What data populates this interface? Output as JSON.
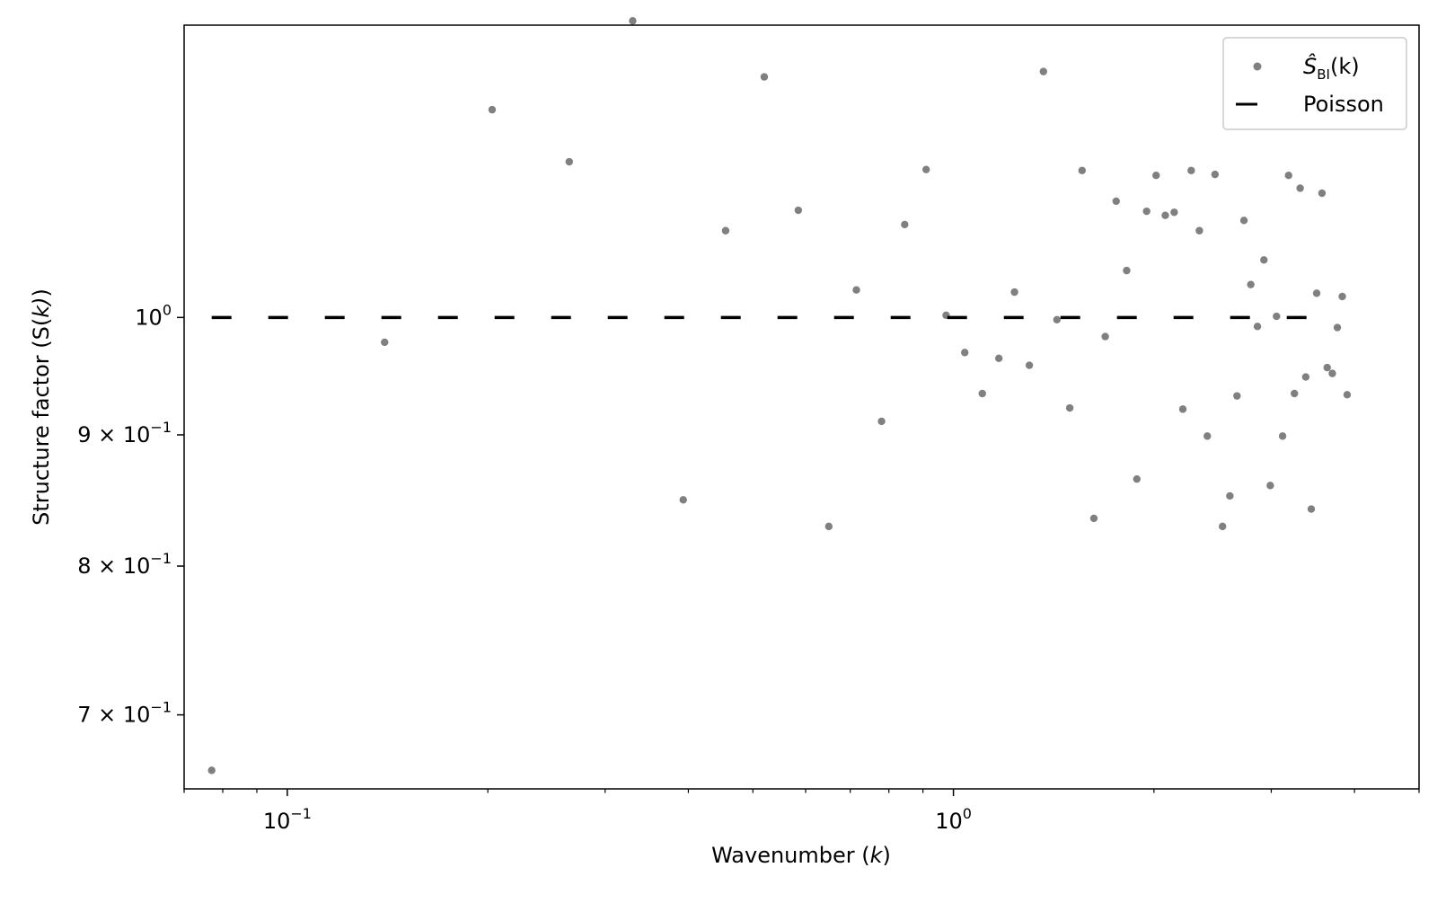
{
  "chart_data": {
    "type": "scatter",
    "xlabel": "Wavenumber (k)",
    "ylabel": "Structure factor (S(k))",
    "xscale": "log",
    "yscale": "log",
    "xlim": [
      0.07,
      5.0
    ],
    "ylim": [
      0.655,
      1.3
    ],
    "grid": false,
    "legend_position": "top-right",
    "x_ticks": [
      {
        "value": 0.1,
        "base": "10",
        "exp": "−1"
      },
      {
        "value": 1.0,
        "base": "10",
        "exp": "0"
      }
    ],
    "y_ticks": [
      {
        "value": 1.0,
        "coef": "",
        "base": "10",
        "exp": "0"
      },
      {
        "value": 0.9,
        "coef": "9 × ",
        "base": "10",
        "exp": "−1"
      },
      {
        "value": 0.8,
        "coef": "8 × ",
        "base": "10",
        "exp": "−1"
      },
      {
        "value": 0.7,
        "coef": "7 × ",
        "base": "10",
        "exp": "−1"
      }
    ],
    "series": [
      {
        "name": "Ŝ_BI(k)",
        "legend_main": "Ŝ",
        "legend_sub": "BI",
        "legend_tail": "(k)",
        "color": "#808080",
        "marker": "dot",
        "points": [
          [
            0.077,
            0.666
          ],
          [
            0.14,
            0.978
          ],
          [
            0.203,
            1.205
          ],
          [
            0.265,
            1.15
          ],
          [
            0.33,
            1.305
          ],
          [
            0.393,
            0.849
          ],
          [
            0.455,
            1.081
          ],
          [
            0.52,
            1.241
          ],
          [
            0.585,
            1.101
          ],
          [
            0.65,
            0.829
          ],
          [
            0.715,
            1.025
          ],
          [
            0.78,
            0.911
          ],
          [
            0.845,
            1.087
          ],
          [
            0.91,
            1.142
          ],
          [
            0.975,
            1.002
          ],
          [
            1.04,
            0.969
          ],
          [
            1.105,
            0.934
          ],
          [
            1.17,
            0.964
          ],
          [
            1.235,
            1.023
          ],
          [
            1.3,
            0.958
          ],
          [
            1.365,
            1.247
          ],
          [
            1.43,
            0.998
          ],
          [
            1.495,
            0.922
          ],
          [
            1.56,
            1.141
          ],
          [
            1.625,
            0.835
          ],
          [
            1.69,
            0.983
          ],
          [
            1.755,
            1.11
          ],
          [
            1.82,
            1.043
          ],
          [
            1.885,
            0.865
          ],
          [
            1.95,
            1.1
          ],
          [
            2.015,
            1.136
          ],
          [
            2.08,
            1.096
          ],
          [
            2.145,
            1.099
          ],
          [
            2.21,
            0.921
          ],
          [
            2.275,
            1.141
          ],
          [
            2.34,
            1.081
          ],
          [
            2.405,
            0.899
          ],
          [
            2.47,
            1.137
          ],
          [
            2.535,
            0.829
          ],
          [
            2.6,
            0.852
          ],
          [
            2.665,
            0.932
          ],
          [
            2.73,
            1.091
          ],
          [
            2.795,
            1.03
          ],
          [
            2.86,
            0.992
          ],
          [
            2.925,
            1.053
          ],
          [
            2.99,
            0.86
          ],
          [
            3.055,
            1.001
          ],
          [
            3.12,
            0.899
          ],
          [
            3.185,
            1.136
          ],
          [
            3.25,
            0.934
          ],
          [
            3.315,
            1.123
          ],
          [
            3.38,
            0.948
          ],
          [
            3.445,
            0.842
          ],
          [
            3.51,
            1.022
          ],
          [
            3.575,
            1.118
          ],
          [
            3.64,
            0.956
          ],
          [
            3.705,
            0.951
          ],
          [
            3.77,
            0.991
          ],
          [
            3.835,
            1.019
          ],
          [
            3.9,
            0.933
          ]
        ]
      },
      {
        "name": "Poisson",
        "color": "#000000",
        "style": "dashed",
        "points": [
          [
            0.077,
            1.0
          ],
          [
            3.72,
            1.0
          ]
        ]
      }
    ]
  }
}
